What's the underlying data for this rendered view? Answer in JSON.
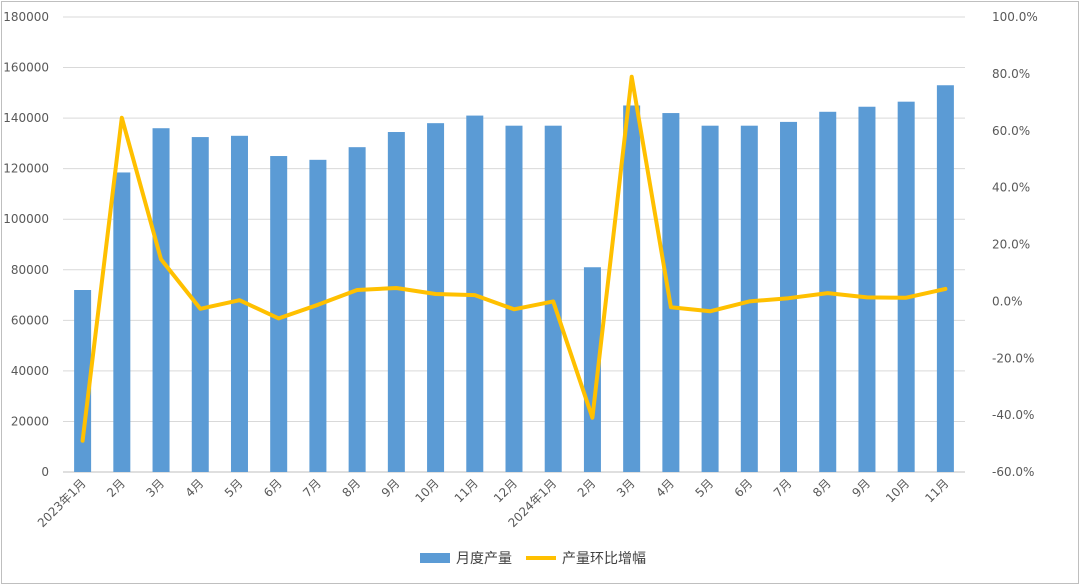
{
  "chart_data": {
    "type": "bar",
    "categories": [
      "2023年1月",
      "2月",
      "3月",
      "4月",
      "5月",
      "6月",
      "7月",
      "8月",
      "9月",
      "10月",
      "11月",
      "12月",
      "2024年1月",
      "2月",
      "3月",
      "4月",
      "5月",
      "6月",
      "7月",
      "8月",
      "9月",
      "10月",
      "11月"
    ],
    "series": [
      {
        "name": "月度产量",
        "type": "bar",
        "axis": "left",
        "values": [
          72000,
          118500,
          136000,
          132500,
          133000,
          125000,
          123500,
          128500,
          134500,
          138000,
          141000,
          137000,
          137000,
          81000,
          145000,
          142000,
          137000,
          137000,
          138500,
          142500,
          144500,
          146500,
          153000
        ]
      },
      {
        "name": "产量环比增幅",
        "type": "line",
        "axis": "right",
        "values": [
          -49.0,
          64.6,
          14.8,
          -2.6,
          0.4,
          -6.0,
          -1.2,
          4.0,
          4.7,
          2.6,
          2.2,
          -2.8,
          0.0,
          -40.9,
          79.0,
          -2.1,
          -3.5,
          0.0,
          1.1,
          2.9,
          1.4,
          1.3,
          4.4
        ]
      }
    ],
    "y_left": {
      "min": 0,
      "max": 180000,
      "ticks": [
        "0",
        "20000",
        "40000",
        "60000",
        "80000",
        "100000",
        "120000",
        "140000",
        "160000",
        "180000"
      ]
    },
    "y_right": {
      "min": -60,
      "max": 100,
      "ticks": [
        "-60.0%",
        "-40.0%",
        "-20.0%",
        "0.0%",
        "20.0%",
        "40.0%",
        "60.0%",
        "80.0%",
        "100.0%"
      ]
    },
    "grid": true,
    "legend_position": "bottom",
    "colors": {
      "bar": "#5b9bd5",
      "line": "#ffc000",
      "grid": "#d9d9d9",
      "axis": "#bfbfbf"
    }
  }
}
